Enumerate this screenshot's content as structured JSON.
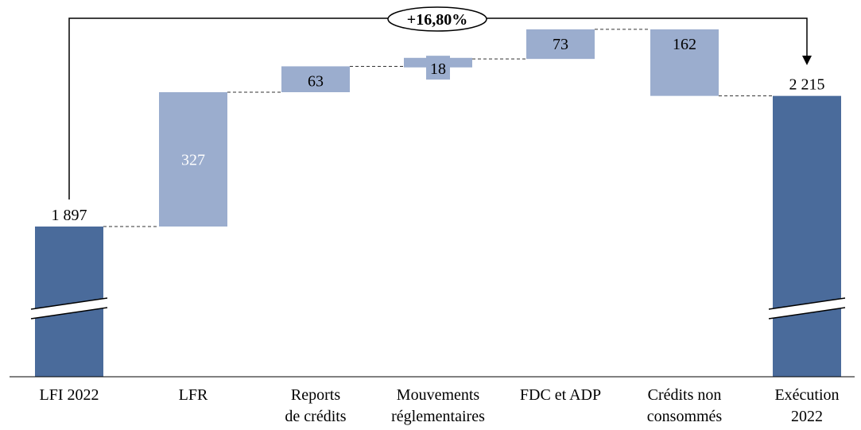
{
  "chart_data": {
    "type": "waterfall",
    "categories": [
      [
        "LFI 2022"
      ],
      [
        "LFR"
      ],
      [
        "Reports",
        "de crédits"
      ],
      [
        "Mouvements",
        "réglementaires"
      ],
      [
        "FDC et ADP"
      ],
      [
        "Crédits non",
        "consommés"
      ],
      [
        "Exécution",
        "2022"
      ]
    ],
    "bars": [
      {
        "kind": "total",
        "start": 0,
        "end": 1897,
        "label": "1 897"
      },
      {
        "kind": "increase",
        "start": 1897,
        "end": 2224,
        "label": "327"
      },
      {
        "kind": "increase",
        "start": 2224,
        "end": 2287,
        "label": "63"
      },
      {
        "kind": "change",
        "start": 2287,
        "end": 2305,
        "label": "18"
      },
      {
        "kind": "increase",
        "start": 2305,
        "end": 2377,
        "label": "73"
      },
      {
        "kind": "decrease",
        "start": 2377,
        "end": 2215,
        "label": "162"
      },
      {
        "kind": "total",
        "start": 0,
        "end": 2215,
        "label": "2 215"
      }
    ],
    "growth_annotation": "+16,80%",
    "axis_break": true,
    "colors": {
      "total": "#4a6b9b",
      "increase": "#9badce",
      "decrease": "#9badce",
      "change": "#9badce"
    }
  }
}
